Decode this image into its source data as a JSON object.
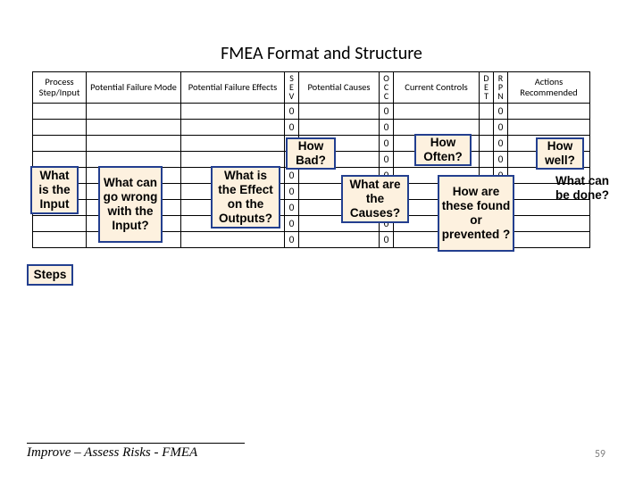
{
  "title": "FMEA Format and Structure",
  "columns": {
    "step": "Process Step/Input",
    "pfm": "Potential Failure Mode",
    "pfe": "Potential Failure Effects",
    "sev": "S\nE\nV",
    "pc": "Potential Causes",
    "occ": "O\nC\nC",
    "cc": "Current Controls",
    "det": "D\nE\nT",
    "rpn": "R\nP\nN",
    "act": "Actions Recommended"
  },
  "rows": 9,
  "cell_default": {
    "sev": "0",
    "occ": "0",
    "rpn": "0"
  },
  "callouts": {
    "input": "What is the Input",
    "wrong": "What can go wrong with the Input?",
    "effect": "What is the Effect on the Outputs?",
    "bad": "How Bad?",
    "causes": "What are the Causes?",
    "often": "How Often?",
    "found": "How are these found or prevented ?",
    "well": "How well?",
    "action": "What can be done?",
    "steps": "Steps"
  },
  "footer": "Improve – Assess Risks - FMEA",
  "page_number": "59",
  "style": {
    "callout_bg": "#fdf1df",
    "callout_border": "#233f8f",
    "table_border": "#000000",
    "title_fontsize": 20,
    "callout_fontsize": 13.5,
    "table_fontsize": 11
  }
}
